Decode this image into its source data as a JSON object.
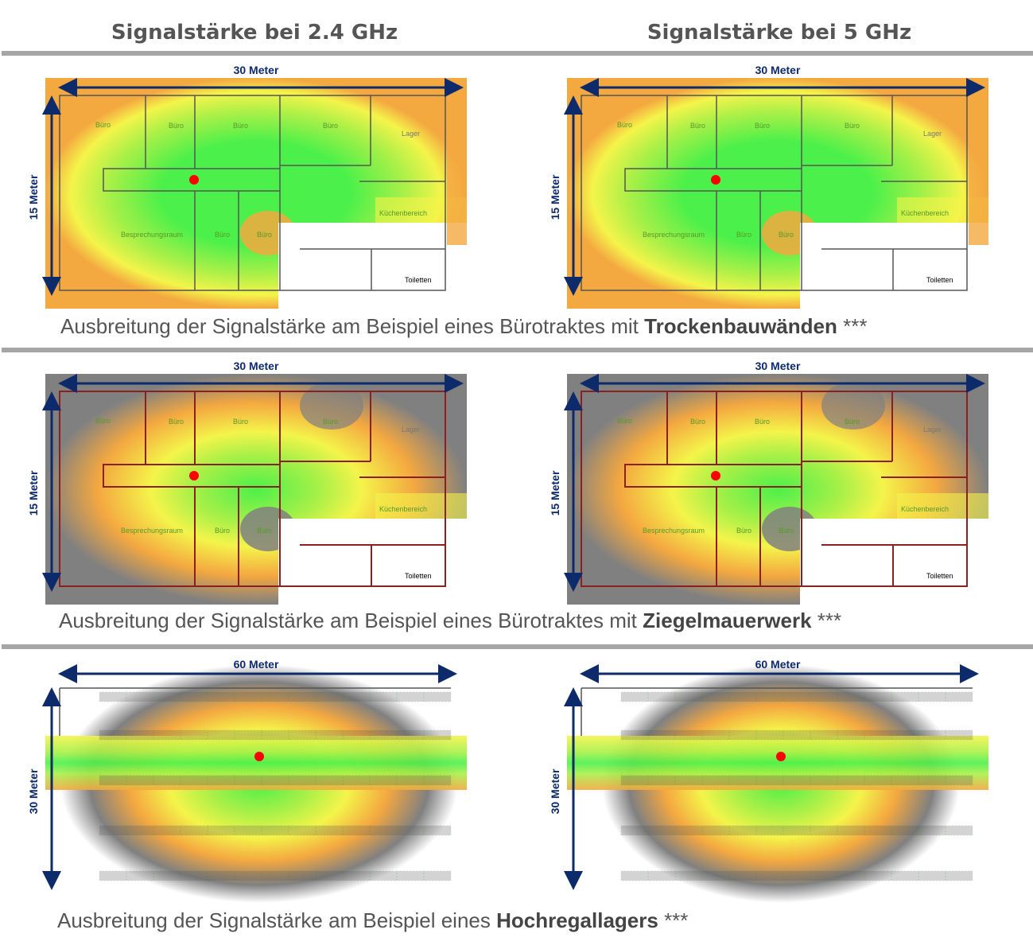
{
  "columns": [
    "Signalstärke bei 2.4 GHz",
    "Signalstärke bei 5 GHz"
  ],
  "rows": [
    {
      "caption_prefix": "Ausbreitung der Signalstärke am Beispiel eines Bürotraktes mit ",
      "caption_bold": "Trockenbauwänden",
      "caption_suffix": " ***",
      "width_label": "30 Meter",
      "height_label": "15 Meter",
      "type": "office",
      "material": "drywall"
    },
    {
      "caption_prefix": "Ausbreitung der Signalstärke am Beispiel eines Bürotraktes mit ",
      "caption_bold": "Ziegelmauerwerk",
      "caption_suffix": " ***",
      "width_label": "30 Meter",
      "height_label": "15 Meter",
      "type": "office",
      "material": "brick"
    },
    {
      "caption_prefix": "Ausbreitung der Signalstärke am Beispiel eines ",
      "caption_bold": "Hochregallagers",
      "caption_suffix": " ***",
      "width_label": "60 Meter",
      "height_label": "30 Meter",
      "type": "warehouse",
      "material": "shelving"
    }
  ],
  "rooms": [
    "Büro",
    "Büro",
    "Büro",
    "Büro",
    "Lager",
    "Küchenbereich",
    "Besprechungsraum",
    "Büro",
    "Büro",
    "Toiletten"
  ],
  "colors": {
    "strong": "#4cf04a",
    "good": "#a8f048",
    "medium": "#f4f44a",
    "weak": "#f4a840",
    "poor": "#808080",
    "access_point": "#ff0000",
    "dimension_arrow": "#0d2a6b"
  }
}
